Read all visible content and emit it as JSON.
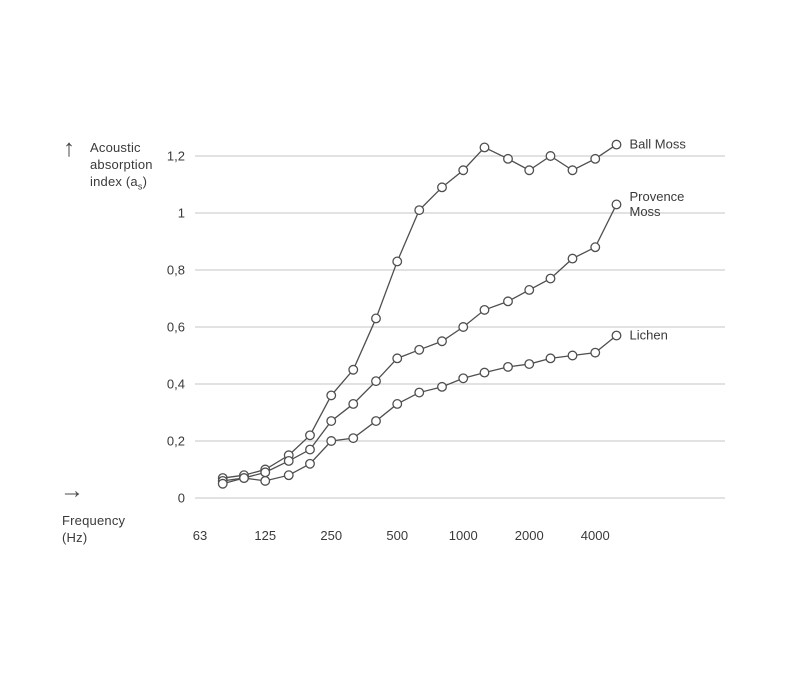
{
  "y_axis": {
    "arrow": "↑",
    "title_line1": "Acoustic",
    "title_line2": "absorption",
    "title_line3_pre": "index (a",
    "title_line3_sub": "s",
    "title_line3_post": ")"
  },
  "x_axis": {
    "arrow": "→",
    "title_line1": "Frequency",
    "title_line2": "(Hz)"
  },
  "chart_data": {
    "type": "line",
    "title": "",
    "xlabel": "Frequency (Hz)",
    "ylabel": "Acoustic absorption index (as)",
    "x_scale": "log",
    "ylim": [
      0,
      1.2
    ],
    "grid": "horizontal",
    "legend_position": "right-of-last-point",
    "x": [
      80,
      100,
      125,
      160,
      200,
      250,
      315,
      400,
      500,
      630,
      800,
      1000,
      1250,
      1600,
      2000,
      2500,
      3150,
      4000,
      5000
    ],
    "series": [
      {
        "id": "ball-moss",
        "name": "Ball Moss",
        "label_lines": [
          "Ball Moss"
        ],
        "values": [
          0.07,
          0.08,
          0.1,
          0.15,
          0.22,
          0.36,
          0.45,
          0.63,
          0.83,
          1.01,
          1.09,
          1.15,
          1.23,
          1.19,
          1.15,
          1.2,
          1.15,
          1.19,
          1.24
        ]
      },
      {
        "id": "provence-moss",
        "name": "Provence Moss",
        "label_lines": [
          "Provence",
          "Moss"
        ],
        "values": [
          0.06,
          0.07,
          0.09,
          0.13,
          0.17,
          0.27,
          0.33,
          0.41,
          0.49,
          0.52,
          0.55,
          0.6,
          0.66,
          0.69,
          0.73,
          0.77,
          0.84,
          0.88,
          1.03
        ]
      },
      {
        "id": "lichen",
        "name": "Lichen",
        "label_lines": [
          "Lichen"
        ],
        "values": [
          0.05,
          0.07,
          0.06,
          0.08,
          0.12,
          0.2,
          0.21,
          0.27,
          0.33,
          0.37,
          0.39,
          0.42,
          0.44,
          0.46,
          0.47,
          0.49,
          0.5,
          0.51,
          0.57
        ]
      }
    ],
    "x_ticks": [
      {
        "value": 63,
        "label": "63"
      },
      {
        "value": 125,
        "label": "125"
      },
      {
        "value": 250,
        "label": "250"
      },
      {
        "value": 500,
        "label": "500"
      },
      {
        "value": 1000,
        "label": "1000"
      },
      {
        "value": 2000,
        "label": "2000"
      },
      {
        "value": 4000,
        "label": "4000"
      }
    ],
    "y_ticks": [
      {
        "value": 0,
        "label": "0"
      },
      {
        "value": 0.2,
        "label": "0,2"
      },
      {
        "value": 0.4,
        "label": "0,4"
      },
      {
        "value": 0.6,
        "label": "0,6"
      },
      {
        "value": 0.8,
        "label": "0,8"
      },
      {
        "value": 1,
        "label": "1"
      },
      {
        "value": 1.2,
        "label": "1,2"
      }
    ],
    "colors": {
      "line": "#4f4f4f",
      "marker_fill": "#ffffff",
      "grid": "#c6c6c6",
      "text": "#3a3a3a"
    }
  }
}
